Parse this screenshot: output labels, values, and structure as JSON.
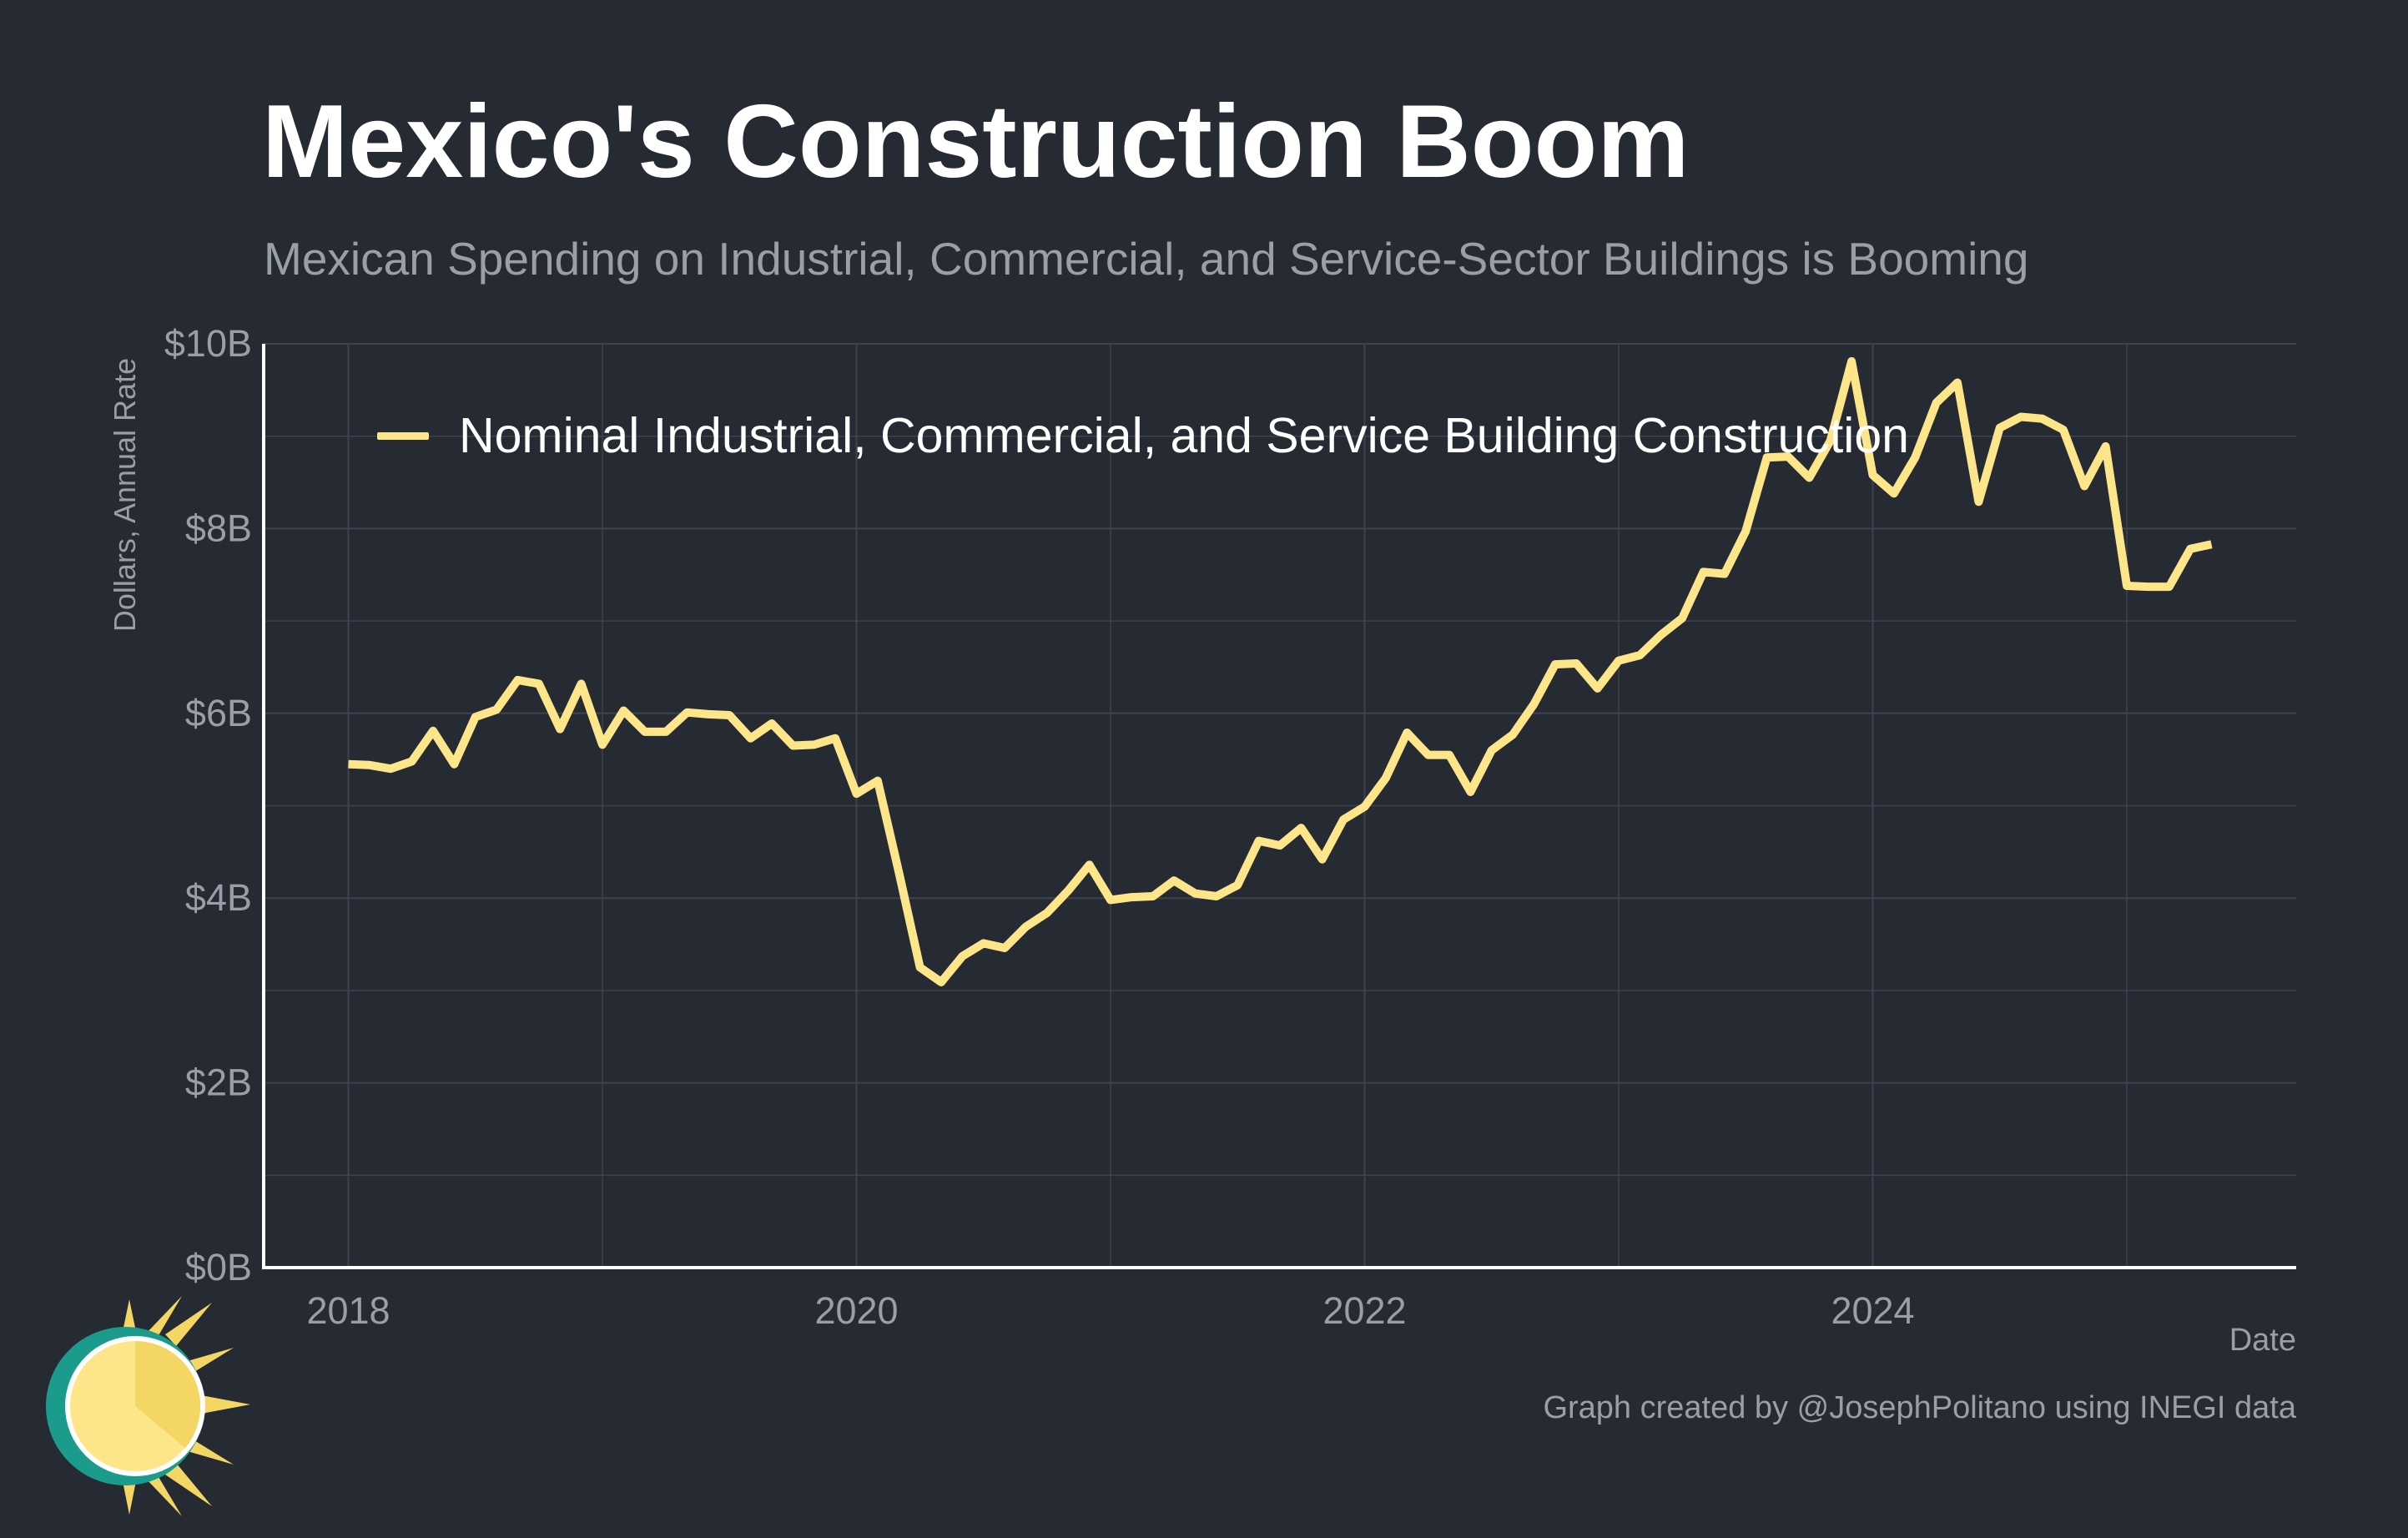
{
  "title": "Mexico's Construction Boom",
  "subtitle": "Mexican Spending on Industrial, Commercial, and Service-Sector Buildings is Booming",
  "caption": "Graph created by @JosephPolitano using INEGI data",
  "colors": {
    "background": "#252a33",
    "line": "#fde68a",
    "grid": "#3e434d",
    "axis": "#ffffff",
    "muted_text": "#9a9ea6"
  },
  "chart_data": {
    "type": "line",
    "xlabel": "Date",
    "ylabel": "Dollars, Annual Rate",
    "x_ticks": [
      "2018",
      "2020",
      "2022",
      "2024"
    ],
    "y_ticks": [
      "$0B",
      "$2B",
      "$4B",
      "$6B",
      "$8B",
      "$10B"
    ],
    "xlim": [
      "2017-09",
      "2025-09"
    ],
    "ylim": [
      0,
      10
    ],
    "y_unit": "billions of dollars",
    "grid": true,
    "legend_position": "top-left",
    "series": [
      {
        "name": "Nominal Industrial, Commercial, and Service Building Construction",
        "color": "#fde68a",
        "x": [
          "2018-01",
          "2018-02",
          "2018-03",
          "2018-04",
          "2018-05",
          "2018-06",
          "2018-07",
          "2018-08",
          "2018-09",
          "2018-10",
          "2018-11",
          "2018-12",
          "2019-01",
          "2019-02",
          "2019-03",
          "2019-04",
          "2019-05",
          "2019-06",
          "2019-07",
          "2019-08",
          "2019-09",
          "2019-10",
          "2019-11",
          "2019-12",
          "2020-01",
          "2020-02",
          "2020-03",
          "2020-04",
          "2020-05",
          "2020-06",
          "2020-07",
          "2020-08",
          "2020-09",
          "2020-10",
          "2020-11",
          "2020-12",
          "2021-01",
          "2021-02",
          "2021-03",
          "2021-04",
          "2021-05",
          "2021-06",
          "2021-07",
          "2021-08",
          "2021-09",
          "2021-10",
          "2021-11",
          "2021-12",
          "2022-01",
          "2022-02",
          "2022-03",
          "2022-04",
          "2022-05",
          "2022-06",
          "2022-07",
          "2022-08",
          "2022-09",
          "2022-10",
          "2022-11",
          "2022-12",
          "2023-01",
          "2023-02",
          "2023-03",
          "2023-04",
          "2023-05",
          "2023-06",
          "2023-07",
          "2023-08",
          "2023-09",
          "2023-10",
          "2023-11",
          "2023-12",
          "2024-01",
          "2024-02",
          "2024-03",
          "2024-04",
          "2024-05",
          "2024-06",
          "2024-07",
          "2024-08",
          "2024-09",
          "2024-10",
          "2024-11",
          "2024-12",
          "2025-01",
          "2025-02",
          "2025-03",
          "2025-04",
          "2025-05"
        ],
        "values": [
          5.45,
          5.44,
          5.4,
          5.48,
          5.81,
          5.45,
          5.96,
          6.04,
          6.36,
          6.32,
          5.83,
          6.32,
          5.66,
          6.03,
          5.8,
          5.8,
          6.01,
          5.99,
          5.98,
          5.73,
          5.89,
          5.65,
          5.66,
          5.73,
          5.13,
          5.27,
          4.28,
          3.25,
          3.09,
          3.37,
          3.51,
          3.46,
          3.69,
          3.84,
          4.08,
          4.36,
          3.98,
          4.01,
          4.02,
          4.19,
          4.05,
          4.02,
          4.14,
          4.62,
          4.57,
          4.76,
          4.42,
          4.85,
          4.99,
          5.3,
          5.79,
          5.55,
          5.55,
          5.15,
          5.6,
          5.77,
          6.1,
          6.53,
          6.54,
          6.27,
          6.57,
          6.63,
          6.85,
          7.03,
          7.53,
          7.51,
          7.97,
          8.77,
          8.78,
          8.55,
          8.95,
          9.81,
          8.58,
          8.38,
          8.77,
          9.36,
          9.58,
          8.29,
          9.09,
          9.21,
          9.19,
          9.07,
          8.46,
          8.89,
          7.38,
          7.37,
          7.37,
          7.78,
          7.83
        ]
      }
    ]
  }
}
